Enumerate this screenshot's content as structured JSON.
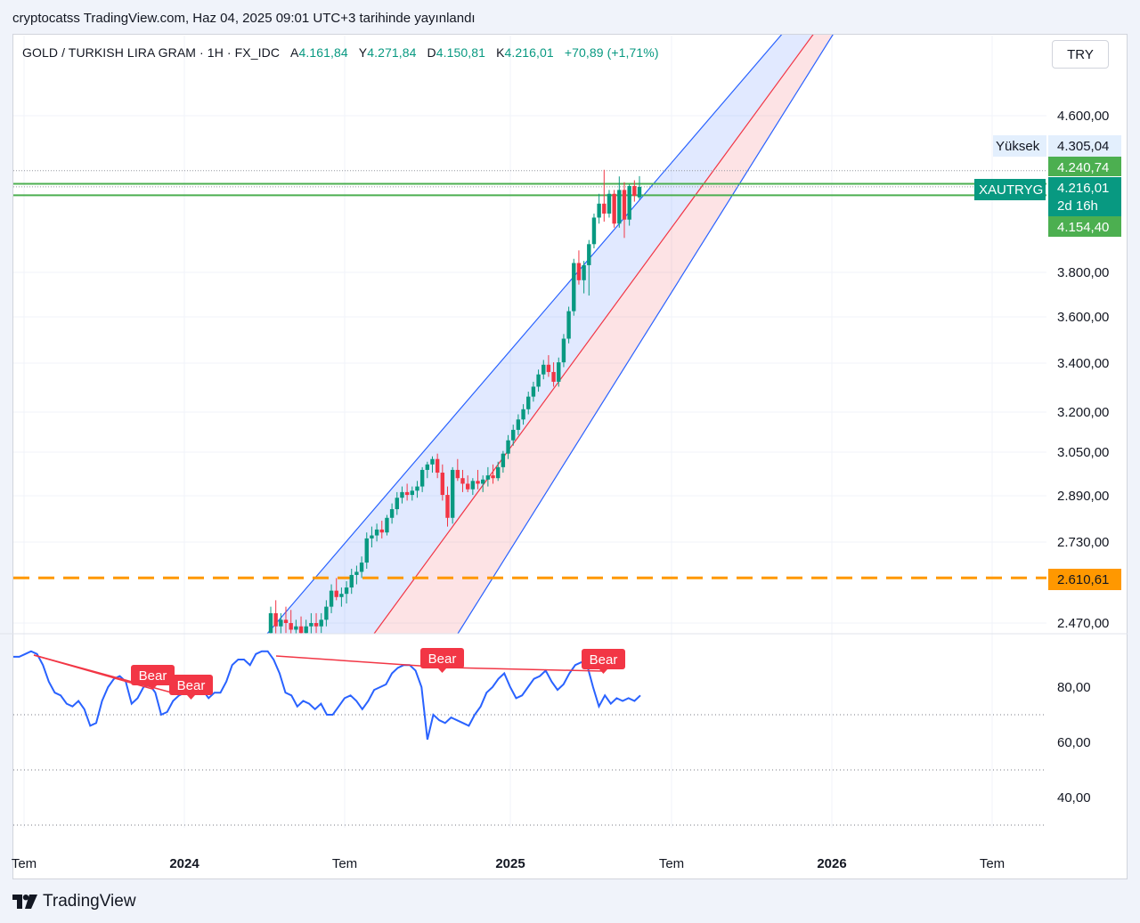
{
  "header": {
    "publish_line": "cryptocatss TradingView.com, Haz 04, 2025 09:01 UTC+3 tarihinde yayınlandı"
  },
  "legend": {
    "symbol": "GOLD / TURKISH LIRA GRAM · 1H · FX_IDC",
    "open_label": "A",
    "open": "4.161,84",
    "high_label": "Y",
    "high": "4.271,84",
    "low_label": "D",
    "low": "4.150,81",
    "close_label": "K",
    "close": "4.216,01",
    "change": "+70,89 (+1,71%)"
  },
  "currency_button": "TRY",
  "colors": {
    "up": "#089981",
    "down": "#f23645",
    "channel_blue": "#2962ff",
    "channel_red": "#f23645",
    "rsi_line": "#2962ff",
    "bear_label": "#f23645",
    "orange_line": "#ff9800",
    "green_line": "#4caf50"
  },
  "price_axis": {
    "ticks": [
      "4.600,00",
      "3.800,00",
      "3.600,00",
      "3.400,00",
      "3.200,00",
      "3.050,00",
      "2.890,00",
      "2.730,00",
      "2.470,00"
    ],
    "high_label": "Yüksek",
    "high_value": "4.305,04",
    "tag_upper": "4.240,74",
    "symbol_tag": "XAUTRYG",
    "last_price": "4.216,01",
    "countdown": "2d 16h",
    "tag_lower": "4.154,40",
    "orange_tag": "2.610,61"
  },
  "rsi_axis": {
    "ticks": [
      "80,00",
      "60,00",
      "40,00"
    ]
  },
  "time_axis": {
    "labels": [
      {
        "text": "Tem",
        "bold": false
      },
      {
        "text": "2024",
        "bold": true
      },
      {
        "text": "Tem",
        "bold": false
      },
      {
        "text": "2025",
        "bold": true
      },
      {
        "text": "Tem",
        "bold": false
      },
      {
        "text": "2026",
        "bold": true
      },
      {
        "text": "Tem",
        "bold": false
      }
    ]
  },
  "bear_labels": [
    "Bear",
    "Bear",
    "Bear",
    "Bear"
  ],
  "footer": {
    "brand": "TradingView"
  },
  "chart_data": {
    "type": "candlestick",
    "title": "GOLD / TURKISH LIRA GRAM · 1H · FX_IDC",
    "y_scale": "log",
    "ohlc_last": {
      "open": 4161.84,
      "high": 4271.84,
      "low": 4150.81,
      "close": 4216.01
    },
    "horizontal_levels": [
      4305.04,
      4240.74,
      4154.4,
      2610.61
    ],
    "candles": [
      {
        "o": 2440,
        "h": 2520,
        "l": 2380,
        "c": 2500
      },
      {
        "o": 2500,
        "h": 2540,
        "l": 2430,
        "c": 2460
      },
      {
        "o": 2460,
        "h": 2500,
        "l": 2420,
        "c": 2480
      },
      {
        "o": 2480,
        "h": 2520,
        "l": 2440,
        "c": 2470
      },
      {
        "o": 2470,
        "h": 2510,
        "l": 2430,
        "c": 2450
      },
      {
        "o": 2450,
        "h": 2480,
        "l": 2410,
        "c": 2460
      },
      {
        "o": 2460,
        "h": 2490,
        "l": 2420,
        "c": 2440
      },
      {
        "o": 2440,
        "h": 2480,
        "l": 2410,
        "c": 2460
      },
      {
        "o": 2460,
        "h": 2500,
        "l": 2430,
        "c": 2470
      },
      {
        "o": 2470,
        "h": 2500,
        "l": 2440,
        "c": 2460
      },
      {
        "o": 2460,
        "h": 2500,
        "l": 2440,
        "c": 2480
      },
      {
        "o": 2480,
        "h": 2540,
        "l": 2460,
        "c": 2520
      },
      {
        "o": 2520,
        "h": 2590,
        "l": 2500,
        "c": 2570
      },
      {
        "o": 2570,
        "h": 2610,
        "l": 2540,
        "c": 2550
      },
      {
        "o": 2550,
        "h": 2580,
        "l": 2520,
        "c": 2560
      },
      {
        "o": 2560,
        "h": 2600,
        "l": 2530,
        "c": 2580
      },
      {
        "o": 2580,
        "h": 2640,
        "l": 2560,
        "c": 2620
      },
      {
        "o": 2620,
        "h": 2650,
        "l": 2590,
        "c": 2630
      },
      {
        "o": 2630,
        "h": 2680,
        "l": 2610,
        "c": 2660
      },
      {
        "o": 2660,
        "h": 2760,
        "l": 2640,
        "c": 2740
      },
      {
        "o": 2740,
        "h": 2780,
        "l": 2710,
        "c": 2750
      },
      {
        "o": 2750,
        "h": 2790,
        "l": 2730,
        "c": 2770
      },
      {
        "o": 2770,
        "h": 2800,
        "l": 2740,
        "c": 2760
      },
      {
        "o": 2760,
        "h": 2820,
        "l": 2750,
        "c": 2810
      },
      {
        "o": 2810,
        "h": 2860,
        "l": 2790,
        "c": 2840
      },
      {
        "o": 2840,
        "h": 2900,
        "l": 2820,
        "c": 2880
      },
      {
        "o": 2880,
        "h": 2920,
        "l": 2860,
        "c": 2900
      },
      {
        "o": 2900,
        "h": 2930,
        "l": 2870,
        "c": 2890
      },
      {
        "o": 2890,
        "h": 2920,
        "l": 2870,
        "c": 2905
      },
      {
        "o": 2905,
        "h": 2940,
        "l": 2880,
        "c": 2920
      },
      {
        "o": 2920,
        "h": 2990,
        "l": 2900,
        "c": 2980
      },
      {
        "o": 2980,
        "h": 3010,
        "l": 2950,
        "c": 3000
      },
      {
        "o": 3000,
        "h": 3030,
        "l": 2970,
        "c": 3020
      },
      {
        "o": 3020,
        "h": 3040,
        "l": 2950,
        "c": 2970
      },
      {
        "o": 2970,
        "h": 3000,
        "l": 2870,
        "c": 2890
      },
      {
        "o": 2890,
        "h": 2920,
        "l": 2780,
        "c": 2810
      },
      {
        "o": 2810,
        "h": 2990,
        "l": 2790,
        "c": 2980
      },
      {
        "o": 2980,
        "h": 3020,
        "l": 2940,
        "c": 2950
      },
      {
        "o": 2950,
        "h": 2980,
        "l": 2900,
        "c": 2930
      },
      {
        "o": 2930,
        "h": 2960,
        "l": 2900,
        "c": 2910
      },
      {
        "o": 2910,
        "h": 2950,
        "l": 2890,
        "c": 2940
      },
      {
        "o": 2940,
        "h": 2980,
        "l": 2910,
        "c": 2930
      },
      {
        "o": 2930,
        "h": 2960,
        "l": 2900,
        "c": 2945
      },
      {
        "o": 2945,
        "h": 2990,
        "l": 2920,
        "c": 2960
      },
      {
        "o": 2960,
        "h": 3000,
        "l": 2930,
        "c": 2950
      },
      {
        "o": 2950,
        "h": 3010,
        "l": 2940,
        "c": 2990
      },
      {
        "o": 2990,
        "h": 3050,
        "l": 2970,
        "c": 3040
      },
      {
        "o": 3040,
        "h": 3110,
        "l": 3020,
        "c": 3090
      },
      {
        "o": 3090,
        "h": 3150,
        "l": 3070,
        "c": 3130
      },
      {
        "o": 3130,
        "h": 3190,
        "l": 3110,
        "c": 3170
      },
      {
        "o": 3170,
        "h": 3230,
        "l": 3150,
        "c": 3210
      },
      {
        "o": 3210,
        "h": 3280,
        "l": 3190,
        "c": 3260
      },
      {
        "o": 3260,
        "h": 3320,
        "l": 3240,
        "c": 3300
      },
      {
        "o": 3300,
        "h": 3370,
        "l": 3280,
        "c": 3350
      },
      {
        "o": 3350,
        "h": 3410,
        "l": 3330,
        "c": 3390
      },
      {
        "o": 3390,
        "h": 3430,
        "l": 3340,
        "c": 3360
      },
      {
        "o": 3360,
        "h": 3400,
        "l": 3300,
        "c": 3320
      },
      {
        "o": 3320,
        "h": 3420,
        "l": 3300,
        "c": 3400
      },
      {
        "o": 3400,
        "h": 3520,
        "l": 3380,
        "c": 3500
      },
      {
        "o": 3500,
        "h": 3640,
        "l": 3480,
        "c": 3620
      },
      {
        "o": 3620,
        "h": 3860,
        "l": 3600,
        "c": 3840
      },
      {
        "o": 3840,
        "h": 3900,
        "l": 3740,
        "c": 3760
      },
      {
        "o": 3760,
        "h": 3850,
        "l": 3700,
        "c": 3830
      },
      {
        "o": 3830,
        "h": 3950,
        "l": 3690,
        "c": 3930
      },
      {
        "o": 3930,
        "h": 4080,
        "l": 3910,
        "c": 4060
      },
      {
        "o": 4060,
        "h": 4180,
        "l": 4030,
        "c": 4130
      },
      {
        "o": 4130,
        "h": 4305,
        "l": 4040,
        "c": 4080
      },
      {
        "o": 4080,
        "h": 4200,
        "l": 4060,
        "c": 4180
      },
      {
        "o": 4180,
        "h": 4200,
        "l": 4010,
        "c": 4030
      },
      {
        "o": 4030,
        "h": 4270,
        "l": 4010,
        "c": 4200
      },
      {
        "o": 4200,
        "h": 4240,
        "l": 3960,
        "c": 4050
      },
      {
        "o": 4050,
        "h": 4230,
        "l": 4020,
        "c": 4220
      },
      {
        "o": 4220,
        "h": 4250,
        "l": 4140,
        "c": 4170
      },
      {
        "o": 4161.84,
        "h": 4271.84,
        "l": 4150.81,
        "c": 4216.01
      }
    ],
    "rsi": {
      "ylim": [
        30,
        100
      ],
      "band": [
        50,
        70
      ],
      "values": [
        91,
        91,
        92,
        93,
        92,
        88,
        82,
        78,
        77,
        74,
        73,
        75,
        72,
        66,
        67,
        75,
        80,
        83,
        84,
        82,
        74,
        76,
        80,
        81,
        78,
        70,
        71,
        75,
        77,
        78,
        78,
        80,
        79,
        76,
        78,
        78,
        82,
        88,
        90,
        90,
        88,
        92,
        93,
        93,
        90,
        85,
        78,
        77,
        73,
        75,
        74,
        72,
        74,
        70,
        70,
        73,
        76,
        77,
        75,
        72,
        75,
        79,
        80,
        81,
        85,
        87,
        88,
        88,
        86,
        80,
        61,
        70,
        68,
        67,
        69,
        68,
        67,
        66,
        70,
        73,
        78,
        80,
        83,
        85,
        80,
        76,
        77,
        80,
        83,
        84,
        86,
        82,
        79,
        81,
        85,
        88,
        89,
        88,
        80,
        73,
        77,
        74,
        76,
        75,
        76,
        75,
        77
      ]
    },
    "time_labels": [
      "Tem",
      "2024",
      "Tem",
      "2025",
      "Tem",
      "2026",
      "Tem"
    ]
  }
}
